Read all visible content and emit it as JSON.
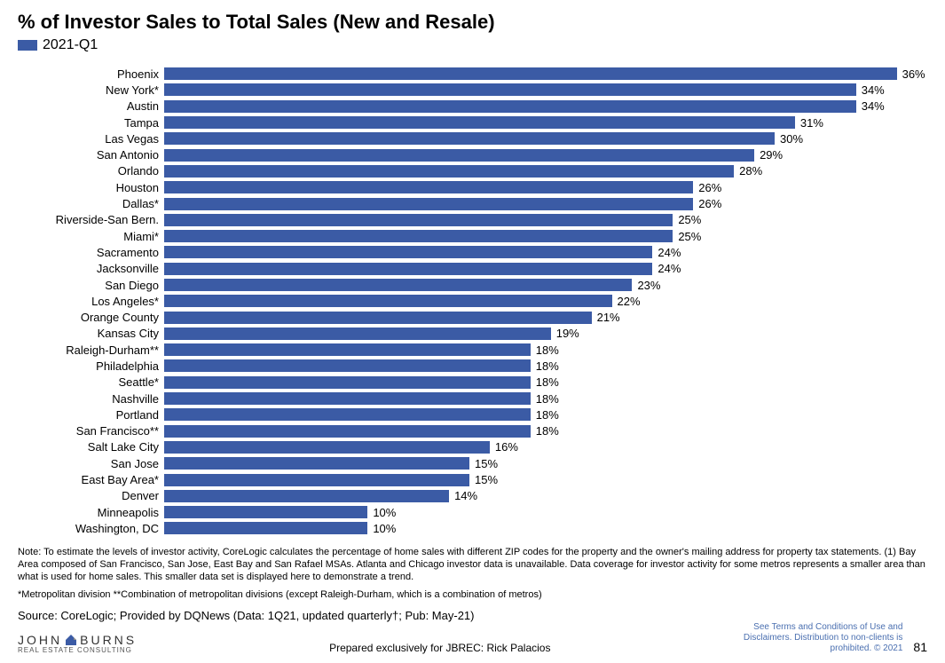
{
  "title": "% of Investor Sales to Total Sales (New and Resale)",
  "legend": {
    "label": "2021-Q1",
    "swatch_color": "#3b5ba5"
  },
  "chart": {
    "type": "bar-horizontal",
    "bar_color": "#3b5ba5",
    "max_value": 36,
    "label_fontsize": 13,
    "value_fontsize": 13,
    "value_suffix": "%",
    "rows": [
      {
        "label": "Phoenix",
        "value": 36
      },
      {
        "label": "New York*",
        "value": 34
      },
      {
        "label": "Austin",
        "value": 34
      },
      {
        "label": "Tampa",
        "value": 31
      },
      {
        "label": "Las Vegas",
        "value": 30
      },
      {
        "label": "San Antonio",
        "value": 29
      },
      {
        "label": "Orlando",
        "value": 28
      },
      {
        "label": "Houston",
        "value": 26
      },
      {
        "label": "Dallas*",
        "value": 26
      },
      {
        "label": "Riverside-San Bern.",
        "value": 25
      },
      {
        "label": "Miami*",
        "value": 25
      },
      {
        "label": "Sacramento",
        "value": 24
      },
      {
        "label": "Jacksonville",
        "value": 24
      },
      {
        "label": "San Diego",
        "value": 23
      },
      {
        "label": "Los Angeles*",
        "value": 22
      },
      {
        "label": "Orange County",
        "value": 21
      },
      {
        "label": "Kansas City",
        "value": 19
      },
      {
        "label": "Raleigh-Durham**",
        "value": 18
      },
      {
        "label": "Philadelphia",
        "value": 18
      },
      {
        "label": "Seattle*",
        "value": 18
      },
      {
        "label": "Nashville",
        "value": 18
      },
      {
        "label": "Portland",
        "value": 18
      },
      {
        "label": "San Francisco**",
        "value": 18
      },
      {
        "label": "Salt Lake City",
        "value": 16
      },
      {
        "label": "San Jose",
        "value": 15
      },
      {
        "label": "East Bay Area*",
        "value": 15
      },
      {
        "label": "Denver",
        "value": 14
      },
      {
        "label": "Minneapolis",
        "value": 10
      },
      {
        "label": "Washington, DC",
        "value": 10
      }
    ]
  },
  "note": "Note: To estimate the levels of investor activity, CoreLogic calculates the percentage of home sales with different ZIP codes for the property and the owner's mailing address for property tax statements. (1) Bay Area composed of San Francisco, San Jose, East Bay and San Rafael MSAs. Atlanta and Chicago investor data is unavailable. Data coverage for investor activity for some metros represents a smaller area than what is used for home sales. This smaller data set is displayed here to demonstrate a trend.",
  "asterisks": "*Metropolitan division  **Combination of metropolitan divisions (except Raleigh-Durham, which is a combination of metros)",
  "source": "Source: CoreLogic; Provided by DQNews (Data: 1Q21, updated quarterly†; Pub: May-21)",
  "footer": {
    "logo_top": "JOHN",
    "logo_top2": "BURNS",
    "logo_sub": "REAL ESTATE CONSULTING",
    "prepared": "Prepared exclusively for JBREC: Rick Palacios",
    "terms": "See Terms and Conditions of Use and Disclaimers. Distribution to non-clients is prohibited. © 2021",
    "page": "81"
  },
  "colors": {
    "bar": "#3b5ba5",
    "text": "#000000",
    "terms": "#4a6fb0",
    "background": "#ffffff"
  }
}
